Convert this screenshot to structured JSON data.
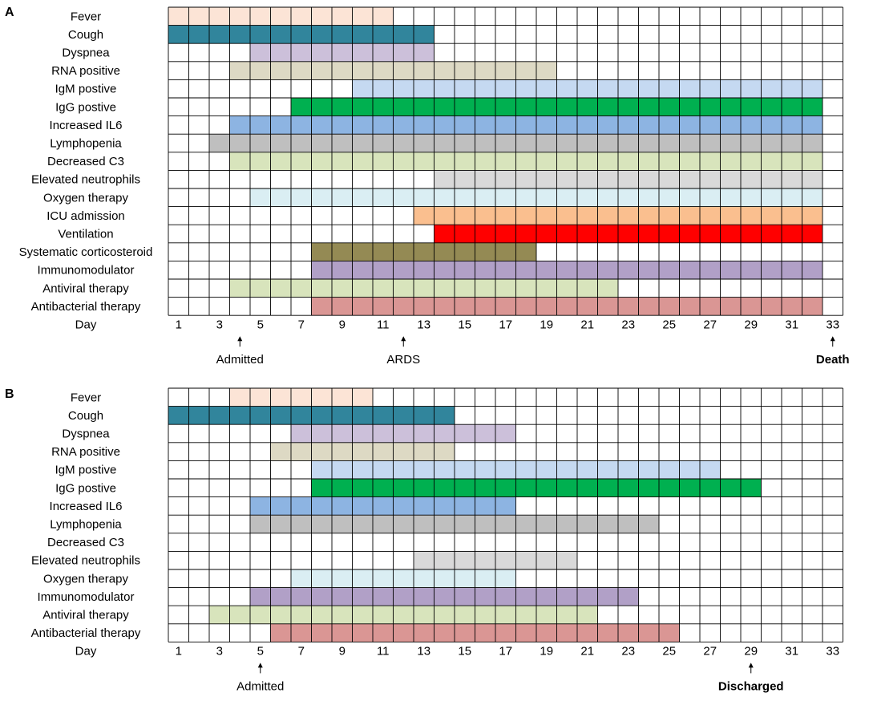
{
  "chart_data": [
    {
      "type": "timeline-grid",
      "panel_label": "A",
      "num_days": 33,
      "day_axis_label": "Day",
      "day_ticks": [
        "1",
        "3",
        "5",
        "7",
        "9",
        "11",
        "13",
        "15",
        "17",
        "19",
        "21",
        "23",
        "25",
        "27",
        "29",
        "31",
        "33"
      ],
      "rows": [
        {
          "label": "Fever",
          "start": 1,
          "end": 11,
          "color": "#FCE4D6"
        },
        {
          "label": "Cough",
          "start": 1,
          "end": 13,
          "color": "#31859C"
        },
        {
          "label": "Dyspnea",
          "start": 5,
          "end": 13,
          "color": "#CCC0DA"
        },
        {
          "label": "RNA positive",
          "start": 4,
          "end": 19,
          "color": "#DDD9C4"
        },
        {
          "label": "IgM postive",
          "start": 10,
          "end": 32,
          "color": "#C5D9F1"
        },
        {
          "label": "IgG postive",
          "start": 7,
          "end": 32,
          "color": "#00B050"
        },
        {
          "label": "Increased IL6",
          "start": 4,
          "end": 32,
          "color": "#8DB4E2"
        },
        {
          "label": "Lymphopenia",
          "start": 3,
          "end": 32,
          "color": "#BFBFBF"
        },
        {
          "label": "Decreased C3",
          "start": 4,
          "end": 32,
          "color": "#D8E4BC"
        },
        {
          "label": "Elevated neutrophils",
          "start": 14,
          "end": 32,
          "color": "#D9D9D9"
        },
        {
          "label": "Oxygen therapy",
          "start": 5,
          "end": 32,
          "color": "#DAEEF3"
        },
        {
          "label": "ICU admission",
          "start": 13,
          "end": 32,
          "color": "#FABF8F"
        },
        {
          "label": "Ventilation",
          "start": 14,
          "end": 32,
          "color": "#FF0000"
        },
        {
          "label": "Systematic corticosteroid",
          "start": 8,
          "end": 18,
          "color": "#948A54"
        },
        {
          "label": "Immunomodulator",
          "start": 8,
          "end": 32,
          "color": "#B1A0C7"
        },
        {
          "label": "Antiviral therapy",
          "start": 4,
          "end": 22,
          "color": "#D8E4BC"
        },
        {
          "label": "Antibacterial therapy",
          "start": 8,
          "end": 32,
          "color": "#DA9694"
        }
      ],
      "events": [
        {
          "label": "Admitted",
          "day": 4,
          "bold": false
        },
        {
          "label": "ARDS",
          "day": 12,
          "bold": false
        },
        {
          "label": "Death",
          "day": 33,
          "bold": true
        }
      ]
    },
    {
      "type": "timeline-grid",
      "panel_label": "B",
      "num_days": 33,
      "day_axis_label": "Day",
      "day_ticks": [
        "1",
        "3",
        "5",
        "7",
        "9",
        "11",
        "13",
        "15",
        "17",
        "19",
        "21",
        "23",
        "25",
        "27",
        "29",
        "31",
        "33"
      ],
      "rows": [
        {
          "label": "Fever",
          "start": 4,
          "end": 10,
          "color": "#FCE4D6"
        },
        {
          "label": "Cough",
          "start": 1,
          "end": 14,
          "color": "#31859C"
        },
        {
          "label": "Dyspnea",
          "start": 7,
          "end": 17,
          "color": "#CCC0DA"
        },
        {
          "label": "RNA positive",
          "start": 6,
          "end": 14,
          "color": "#DDD9C4"
        },
        {
          "label": "IgM postive",
          "start": 8,
          "end": 27,
          "color": "#C5D9F1"
        },
        {
          "label": "IgG postive",
          "start": 8,
          "end": 29,
          "color": "#00B050"
        },
        {
          "label": "Increased IL6",
          "start": 5,
          "end": 17,
          "color": "#8DB4E2"
        },
        {
          "label": "Lymphopenia",
          "start": 5,
          "end": 24,
          "color": "#BFBFBF"
        },
        {
          "label": "Decreased C3",
          "start": null,
          "end": null,
          "color": "#D8E4BC"
        },
        {
          "label": "Elevated neutrophils",
          "start": 13,
          "end": 20,
          "color": "#D9D9D9"
        },
        {
          "label": "Oxygen therapy",
          "start": 7,
          "end": 17,
          "color": "#DAEEF3"
        },
        {
          "label": "Immunomodulator",
          "start": 5,
          "end": 23,
          "color": "#B1A0C7"
        },
        {
          "label": "Antiviral therapy",
          "start": 3,
          "end": 21,
          "color": "#D8E4BC"
        },
        {
          "label": "Antibacterial therapy",
          "start": 6,
          "end": 25,
          "color": "#DA9694"
        }
      ],
      "events": [
        {
          "label": "Admitted",
          "day": 5,
          "bold": false
        },
        {
          "label": "Discharged",
          "day": 29,
          "bold": true
        }
      ]
    }
  ]
}
